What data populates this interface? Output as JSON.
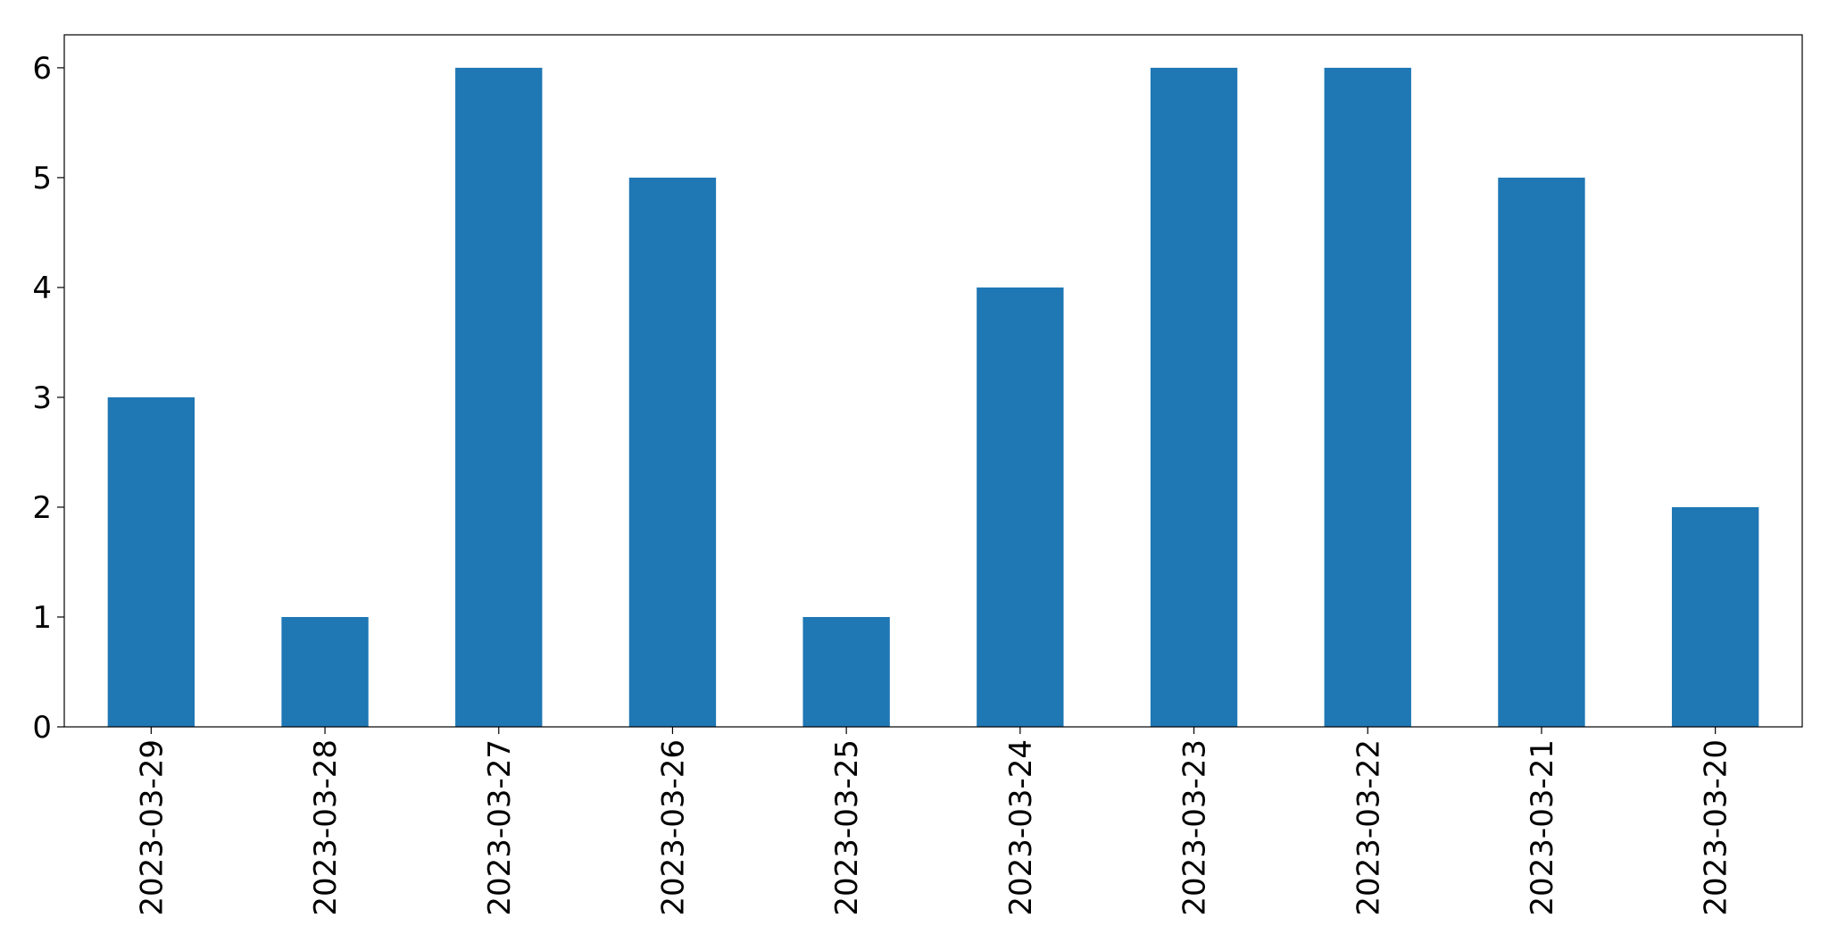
{
  "chart_data": {
    "type": "bar",
    "categories": [
      "2023-03-29",
      "2023-03-28",
      "2023-03-27",
      "2023-03-26",
      "2023-03-25",
      "2023-03-24",
      "2023-03-23",
      "2023-03-22",
      "2023-03-21",
      "2023-03-20"
    ],
    "values": [
      3,
      1,
      6,
      5,
      1,
      4,
      6,
      6,
      5,
      2
    ],
    "color": "#1f77b4",
    "ylim": [
      0,
      6.3
    ],
    "yticks": [
      0,
      1,
      2,
      3,
      4,
      5,
      6
    ],
    "grid": false
  }
}
